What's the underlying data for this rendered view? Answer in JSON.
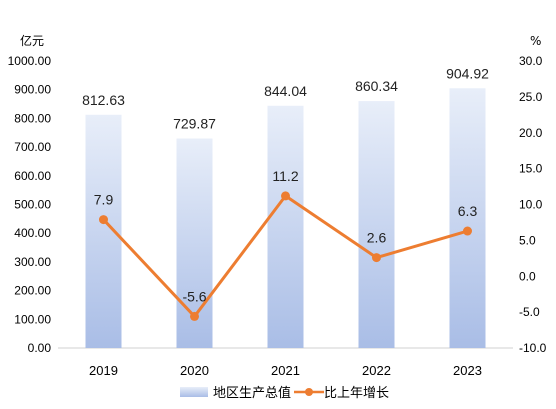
{
  "chart_data": {
    "type": "bar+line",
    "categories": [
      "2019",
      "2020",
      "2021",
      "2022",
      "2023"
    ],
    "series": [
      {
        "name": "地区生产总值",
        "type": "bar",
        "axis": "left",
        "values": [
          812.63,
          729.87,
          844.04,
          860.34,
          904.92
        ],
        "labels": [
          "812.63",
          "729.87",
          "844.04",
          "860.34",
          "904.92"
        ],
        "color_top": "#e8eef9",
        "color_bottom": "#a9bde6"
      },
      {
        "name": "比上年增长",
        "type": "line",
        "axis": "right",
        "values": [
          7.9,
          -5.6,
          11.2,
          2.6,
          6.3
        ],
        "labels": [
          "7.9",
          "-5.6",
          "11.2",
          "2.6",
          "6.3"
        ],
        "color": "#ed7d31"
      }
    ],
    "y_left": {
      "unit": "亿元",
      "min": 0,
      "max": 1000,
      "ticks": [
        "0.00",
        "100.00",
        "200.00",
        "300.00",
        "400.00",
        "500.00",
        "600.00",
        "700.00",
        "800.00",
        "900.00",
        "1000.00"
      ]
    },
    "y_right": {
      "unit": "%",
      "min": -10,
      "max": 30,
      "ticks": [
        "-10.0",
        "-5.0",
        "0.0",
        "5.0",
        "10.0",
        "15.0",
        "20.0",
        "25.0",
        "30.0"
      ]
    },
    "grid": false,
    "legend": "bottom-center"
  }
}
